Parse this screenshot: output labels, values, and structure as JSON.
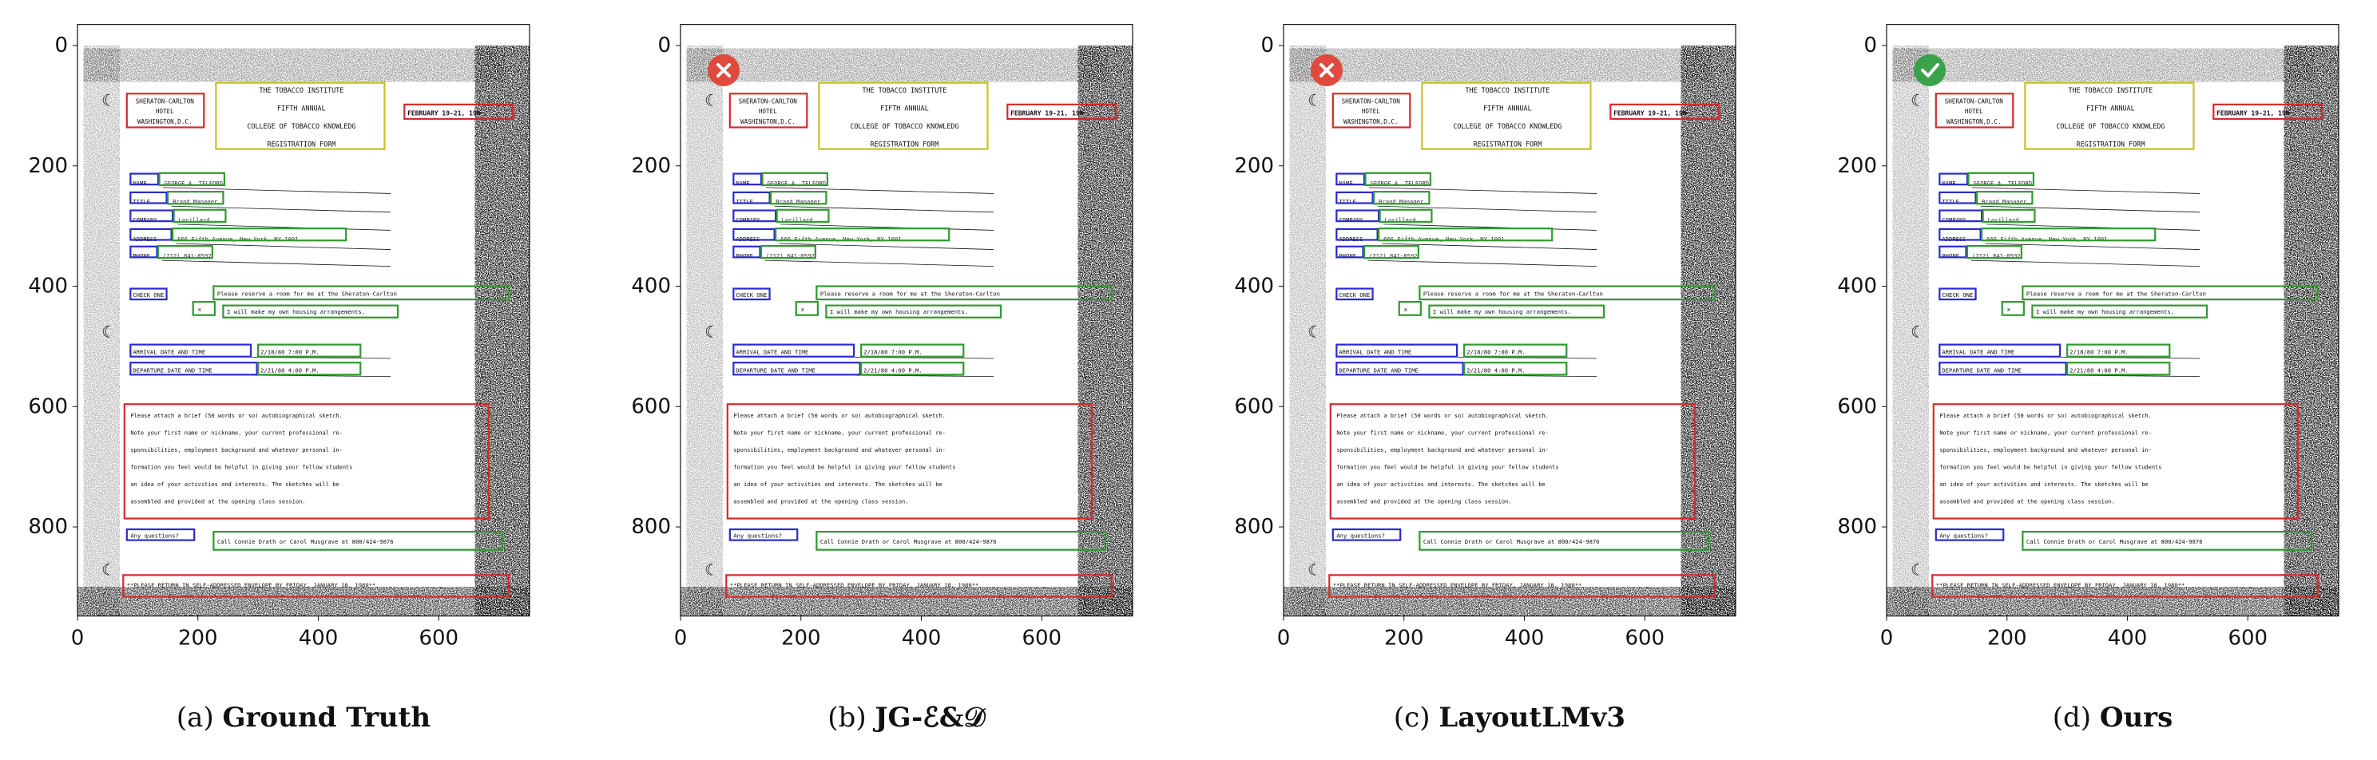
{
  "figure": {
    "panels": [
      {
        "label": "(a)",
        "name": "Ground Truth",
        "status": "none"
      },
      {
        "label": "(b)",
        "name": "JG-ℰ&𝒟",
        "status": "wrong"
      },
      {
        "label": "(c)",
        "name": "LayoutLMv3",
        "status": "wrong"
      },
      {
        "label": "(d)",
        "name": "Ours",
        "status": "correct"
      }
    ],
    "axes": {
      "x_ticks": [
        "0",
        "200",
        "400",
        "600"
      ],
      "y_ticks": [
        "0",
        "200",
        "400",
        "600",
        "800"
      ]
    },
    "legend_colors": {
      "question": "#2a2ad0",
      "answer": "#2f9a2f",
      "header": "#c9c12a",
      "other": "#d62a2a"
    }
  },
  "document": {
    "header_lines": [
      "THE TOBACCO INSTITUTE",
      "FIFTH ANNUAL",
      "COLLEGE OF TOBACCO KNOWLEDG",
      "REGISTRATION FORM"
    ],
    "hotel_lines": [
      "SHERATON-CARLTON",
      "HOTEL",
      "WASHINGTON,D.C."
    ],
    "date": "FEBRUARY 19-21, 198",
    "fields": [
      {
        "label": "NAME",
        "value": "GEORGE A. TELFORD"
      },
      {
        "label": "TITLE",
        "value": "Brand Manager"
      },
      {
        "label": "COMPANY",
        "value": "Lorillard"
      },
      {
        "label": "ADDRESS",
        "value": "666 Fifth Avenue, New York, NY 1001"
      },
      {
        "label": "PHONE",
        "value": "(212) 841-8592"
      }
    ],
    "check_one": "CHECK ONE",
    "check_answers": [
      "Please reserve a room for me at the Sheraton-Carlton",
      "I will make my own housing arrangements."
    ],
    "check_mark": "x",
    "arrival_label": "ARRIVAL DATE AND TIME",
    "arrival_value": "2/18/80  7:00 P.M.",
    "departure_label": "DEPARTURE DATE AND TIME",
    "departure_value": "2/21/80  4:00 P.M.",
    "paragraph": [
      "Please attach a brief (50 words or so) autobiographical sketch.",
      "Note your first name or nickname, your current professional re-",
      "sponsibilities, employment background and whatever personal in-",
      "formation you feel would be helpful in giving your fellow students",
      "an idea of your activities and interests.  The sketches will be",
      "assembled and provided at the opening class session."
    ],
    "questions_label": "Any questions?",
    "questions_value": "Call Connie Drath or Carol Musgrave at 800/424-9876",
    "footer": "**PLEASE RETURN IN SELF-ADDRESSED ENVELOPE BY FRIDAY, JANUARY 18, 1980**"
  }
}
